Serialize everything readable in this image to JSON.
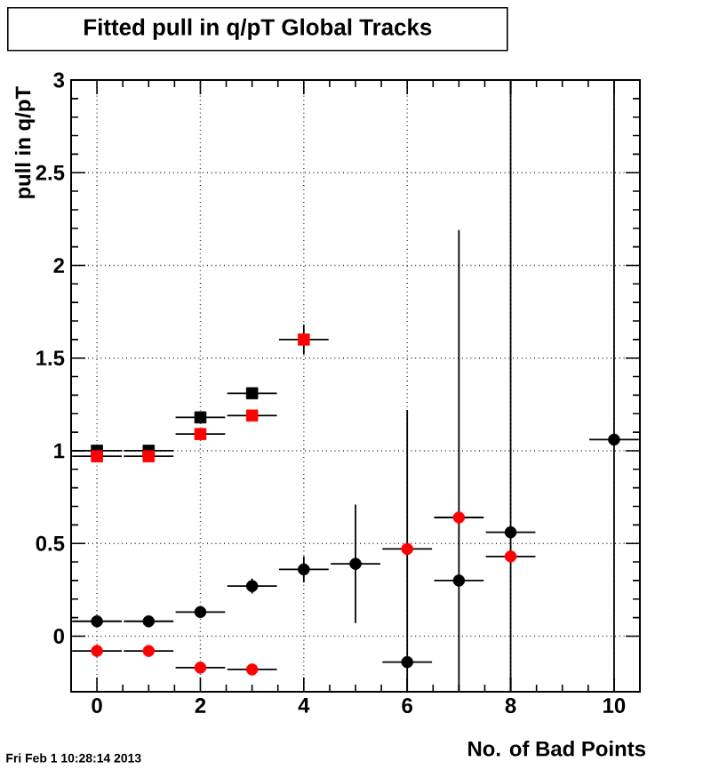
{
  "chart_data": {
    "type": "scatter",
    "title": "Fitted pull in q/pT  Global Tracks",
    "xlabel": "No. of Bad Points",
    "ylabel": "pull in q/pT",
    "annotations": [
      "Fri Feb  1 10:28:14 2013"
    ],
    "xlim": [
      -0.5,
      10.5
    ],
    "xticks": [
      0,
      2,
      4,
      6,
      8,
      10
    ],
    "ylim": [
      -0.3,
      3
    ],
    "yticks": [
      0,
      0.5,
      1,
      1.5,
      2,
      2.5,
      3
    ],
    "grid": true,
    "series": [
      {
        "color": "#000000",
        "marker": "square",
        "x": [
          0,
          1,
          2,
          3
        ],
        "values": [
          1.0,
          1.0,
          1.18,
          1.31
        ],
        "errors": [
          null,
          null,
          null,
          null
        ],
        "xerrors": [
          0.5,
          0.5,
          0.5,
          0.5
        ]
      },
      {
        "color": "#ff0000",
        "marker": "square",
        "x": [
          0,
          1,
          2,
          3,
          4
        ],
        "values": [
          0.97,
          0.97,
          1.09,
          1.19,
          1.6
        ],
        "errors": [
          null,
          null,
          null,
          null,
          0.08
        ],
        "xerrors": [
          0.5,
          0.5,
          0.5,
          0.5,
          0.5
        ]
      },
      {
        "color": "#000000",
        "marker": "circle",
        "x": [
          0,
          1,
          2,
          3,
          4,
          5,
          6,
          7,
          8,
          10
        ],
        "values": [
          0.08,
          0.08,
          0.13,
          0.27,
          0.36,
          0.39,
          -0.14,
          0.3,
          0.56,
          1.06
        ],
        "errors": [
          null,
          null,
          null,
          0.04,
          0.07,
          0.32,
          [
            -0.3,
            1.22
          ],
          [
            -0.3,
            2.19
          ],
          [
            -0.3,
            3
          ],
          [
            -0.3,
            3
          ]
        ],
        "xerrors": [
          0.5,
          0.5,
          0.5,
          0.5,
          0.5,
          0.5,
          0.5,
          0.5,
          0.5,
          0.5
        ]
      },
      {
        "color": "#ff0000",
        "marker": "circle",
        "x": [
          0,
          1,
          2,
          3,
          6,
          7,
          8
        ],
        "values": [
          -0.08,
          -0.08,
          -0.17,
          -0.18,
          0.47,
          0.64,
          0.43
        ],
        "errors": [
          null,
          null,
          null,
          null,
          null,
          null,
          null
        ],
        "xerrors": [
          0.5,
          0.5,
          0.5,
          0.5,
          0.5,
          0.5,
          0.5
        ]
      }
    ]
  }
}
